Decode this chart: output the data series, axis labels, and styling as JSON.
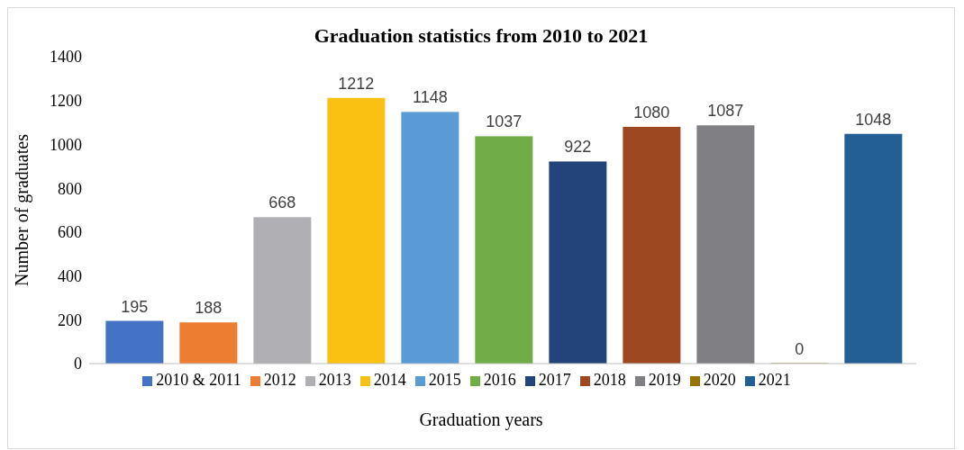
{
  "chart_data": {
    "type": "bar",
    "title": "Graduation statistics from 2010 to 2021",
    "xlabel": "Graduation years",
    "ylabel": "Number of graduates",
    "categories": [
      null
    ],
    "series": [
      {
        "name": "2010 & 2011",
        "color": "#4472c4",
        "values": [
          195
        ]
      },
      {
        "name": "2012",
        "color": "#ed7d31",
        "values": [
          188
        ]
      },
      {
        "name": "2013",
        "color": "#b0b0b4",
        "values": [
          668
        ]
      },
      {
        "name": "2014",
        "color": "#fbc112",
        "values": [
          1212
        ]
      },
      {
        "name": "2015",
        "color": "#5b9bd5",
        "values": [
          1148
        ]
      },
      {
        "name": "2016",
        "color": "#70ad47",
        "values": [
          1037
        ]
      },
      {
        "name": "2017",
        "color": "#23447a",
        "values": [
          922
        ]
      },
      {
        "name": "2018",
        "color": "#9e4821",
        "values": [
          1080
        ]
      },
      {
        "name": "2019",
        "color": "#808084",
        "values": [
          1087
        ]
      },
      {
        "name": "2020",
        "color": "#997300",
        "values": [
          0
        ]
      },
      {
        "name": "2021",
        "color": "#235f94",
        "values": [
          1048
        ]
      }
    ],
    "ylim": [
      0,
      1400
    ],
    "yticks": [
      0,
      200,
      400,
      600,
      800,
      1000,
      1200,
      1400
    ],
    "data_labels": true,
    "legend": "bottom"
  }
}
